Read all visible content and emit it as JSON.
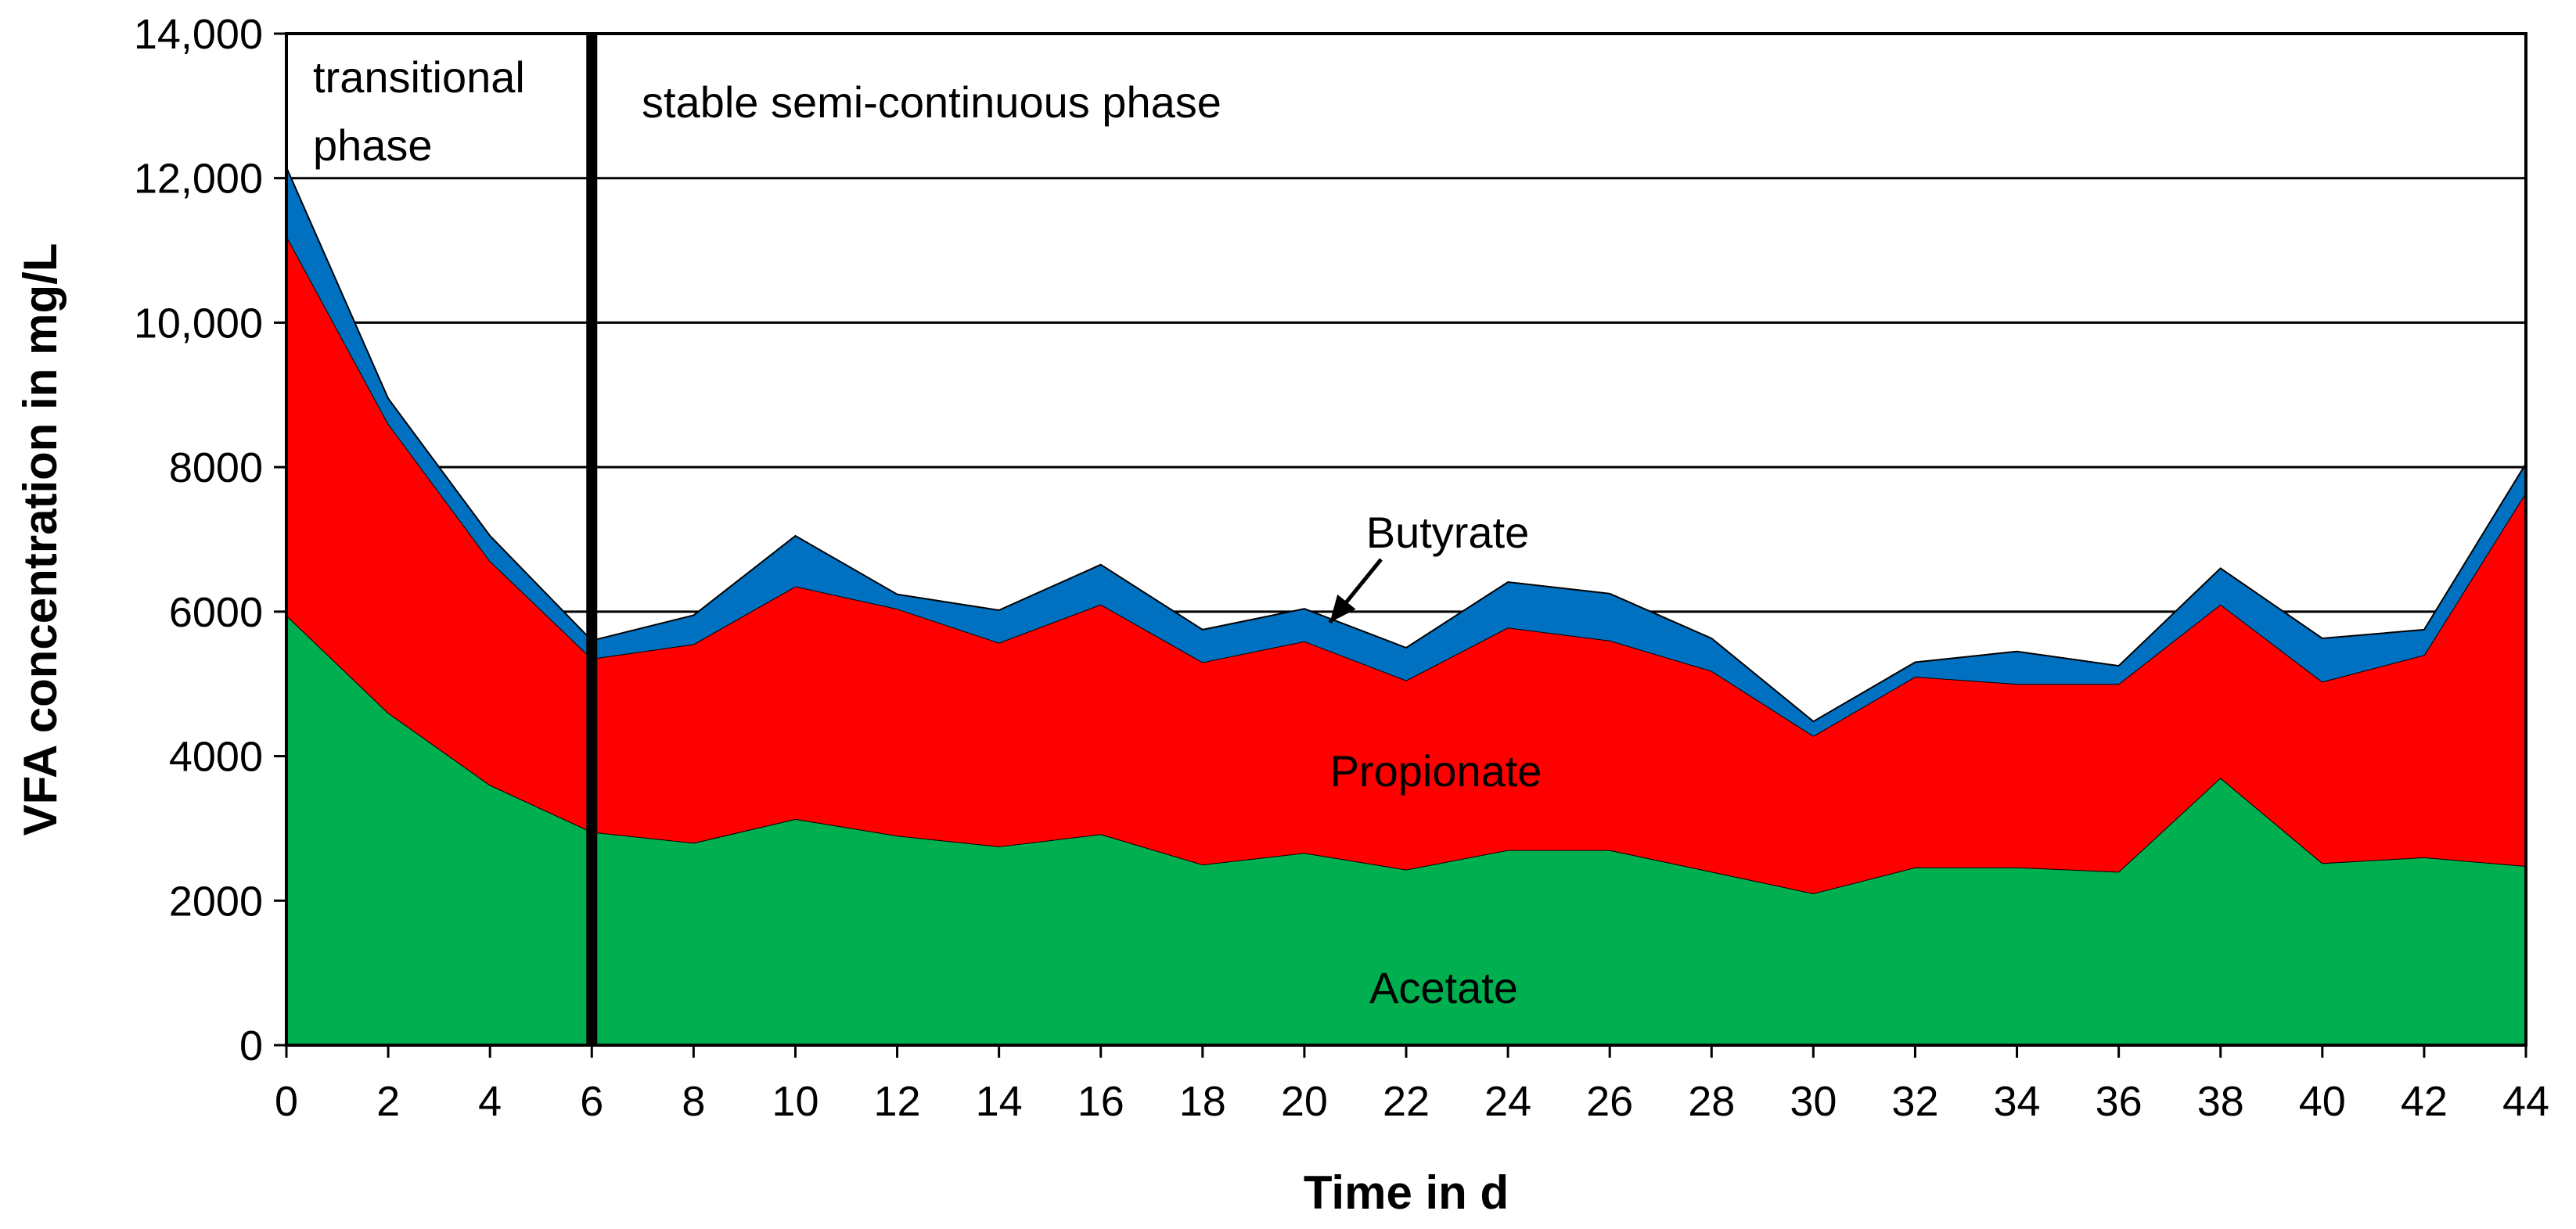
{
  "chart_data": {
    "type": "area",
    "stacked": true,
    "title": "",
    "xlabel": "Time in d",
    "ylabel": "VFA concentration in mg/L",
    "xlim": [
      0,
      44
    ],
    "ylim": [
      0,
      14000
    ],
    "x_ticks": [
      "0",
      "2",
      "4",
      "6",
      "8",
      "10",
      "12",
      "14",
      "16",
      "18",
      "20",
      "22",
      "24",
      "26",
      "28",
      "30",
      "32",
      "34",
      "36",
      "38",
      "40",
      "42",
      "44"
    ],
    "y_ticks": [
      {
        "value": 0,
        "label": "0"
      },
      {
        "value": 2000,
        "label": "2000"
      },
      {
        "value": 4000,
        "label": "4000"
      },
      {
        "value": 6000,
        "label": "6000"
      },
      {
        "value": 8000,
        "label": "8000"
      },
      {
        "value": 10000,
        "label": "10,000"
      },
      {
        "value": 12000,
        "label": "12,000"
      },
      {
        "value": 14000,
        "label": "14,000"
      }
    ],
    "grid": "horizontal",
    "x": [
      0,
      2,
      4,
      6,
      8,
      10,
      12,
      14,
      16,
      18,
      20,
      22,
      24,
      26,
      28,
      30,
      32,
      34,
      36,
      38,
      40,
      42,
      44
    ],
    "series": [
      {
        "name": "Acetate",
        "color": "#00b050",
        "values": [
          5950,
          4600,
          3600,
          2950,
          2800,
          3130,
          2900,
          2750,
          2920,
          2500,
          2660,
          2430,
          2700,
          2700,
          2400,
          2100,
          2460,
          2460,
          2400,
          3700,
          2520,
          2600,
          2480
        ]
      },
      {
        "name": "Propionate",
        "color": "#ff0000",
        "values": [
          5250,
          4000,
          3100,
          2400,
          2750,
          3220,
          3140,
          2820,
          3180,
          2800,
          2930,
          2620,
          3080,
          2900,
          2780,
          2180,
          2640,
          2540,
          2600,
          2400,
          2510,
          2800,
          5170
        ]
      },
      {
        "name": "Butyrate",
        "color": "#0070c0",
        "values": [
          950,
          350,
          350,
          250,
          400,
          700,
          200,
          450,
          550,
          450,
          450,
          450,
          630,
          650,
          450,
          200,
          200,
          450,
          250,
          500,
          600,
          350,
          400
        ]
      }
    ],
    "annotations": {
      "phase_divider_x": 6,
      "transitional_line1": "transitional",
      "transitional_line2": "phase",
      "stable": "stable semi-continuous phase",
      "butyrate_arrow_target": {
        "x": 20.5,
        "y": 5850
      }
    }
  }
}
